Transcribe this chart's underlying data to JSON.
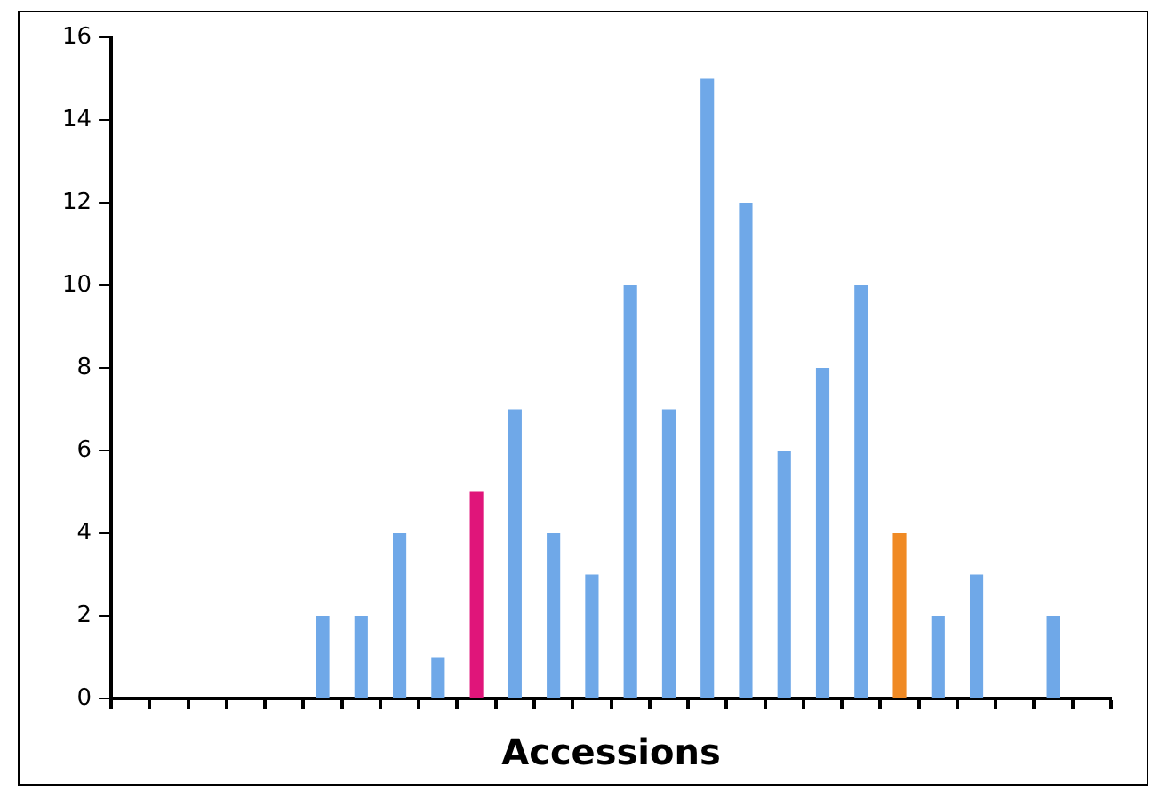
{
  "chart_data": {
    "type": "bar",
    "xlabel": "Accessions",
    "categories": [
      null,
      null,
      null,
      null,
      null,
      null,
      null,
      null,
      null,
      null,
      null,
      null,
      null,
      null,
      null,
      null,
      null,
      null,
      null,
      null,
      null,
      null,
      null,
      null,
      null,
      null
    ],
    "values": [
      0,
      0,
      0,
      0,
      0,
      2,
      2,
      4,
      1,
      5,
      7,
      4,
      3,
      10,
      7,
      15,
      12,
      6,
      8,
      10,
      4,
      2,
      3,
      0,
      2,
      0
    ],
    "colors": [
      "#6fa8e8",
      "#6fa8e8",
      "#6fa8e8",
      "#6fa8e8",
      "#6fa8e8",
      "#6fa8e8",
      "#6fa8e8",
      "#6fa8e8",
      "#6fa8e8",
      "#e0157a",
      "#6fa8e8",
      "#6fa8e8",
      "#6fa8e8",
      "#6fa8e8",
      "#6fa8e8",
      "#6fa8e8",
      "#6fa8e8",
      "#6fa8e8",
      "#6fa8e8",
      "#6fa8e8",
      "#f08a24",
      "#6fa8e8",
      "#6fa8e8",
      "#6fa8e8",
      "#6fa8e8",
      "#6fa8e8"
    ],
    "ylim": [
      0,
      16
    ],
    "yticks": [
      0,
      2,
      4,
      6,
      8,
      10,
      12,
      14,
      16
    ],
    "grid": false,
    "legend": false,
    "tick_labels": "y"
  }
}
